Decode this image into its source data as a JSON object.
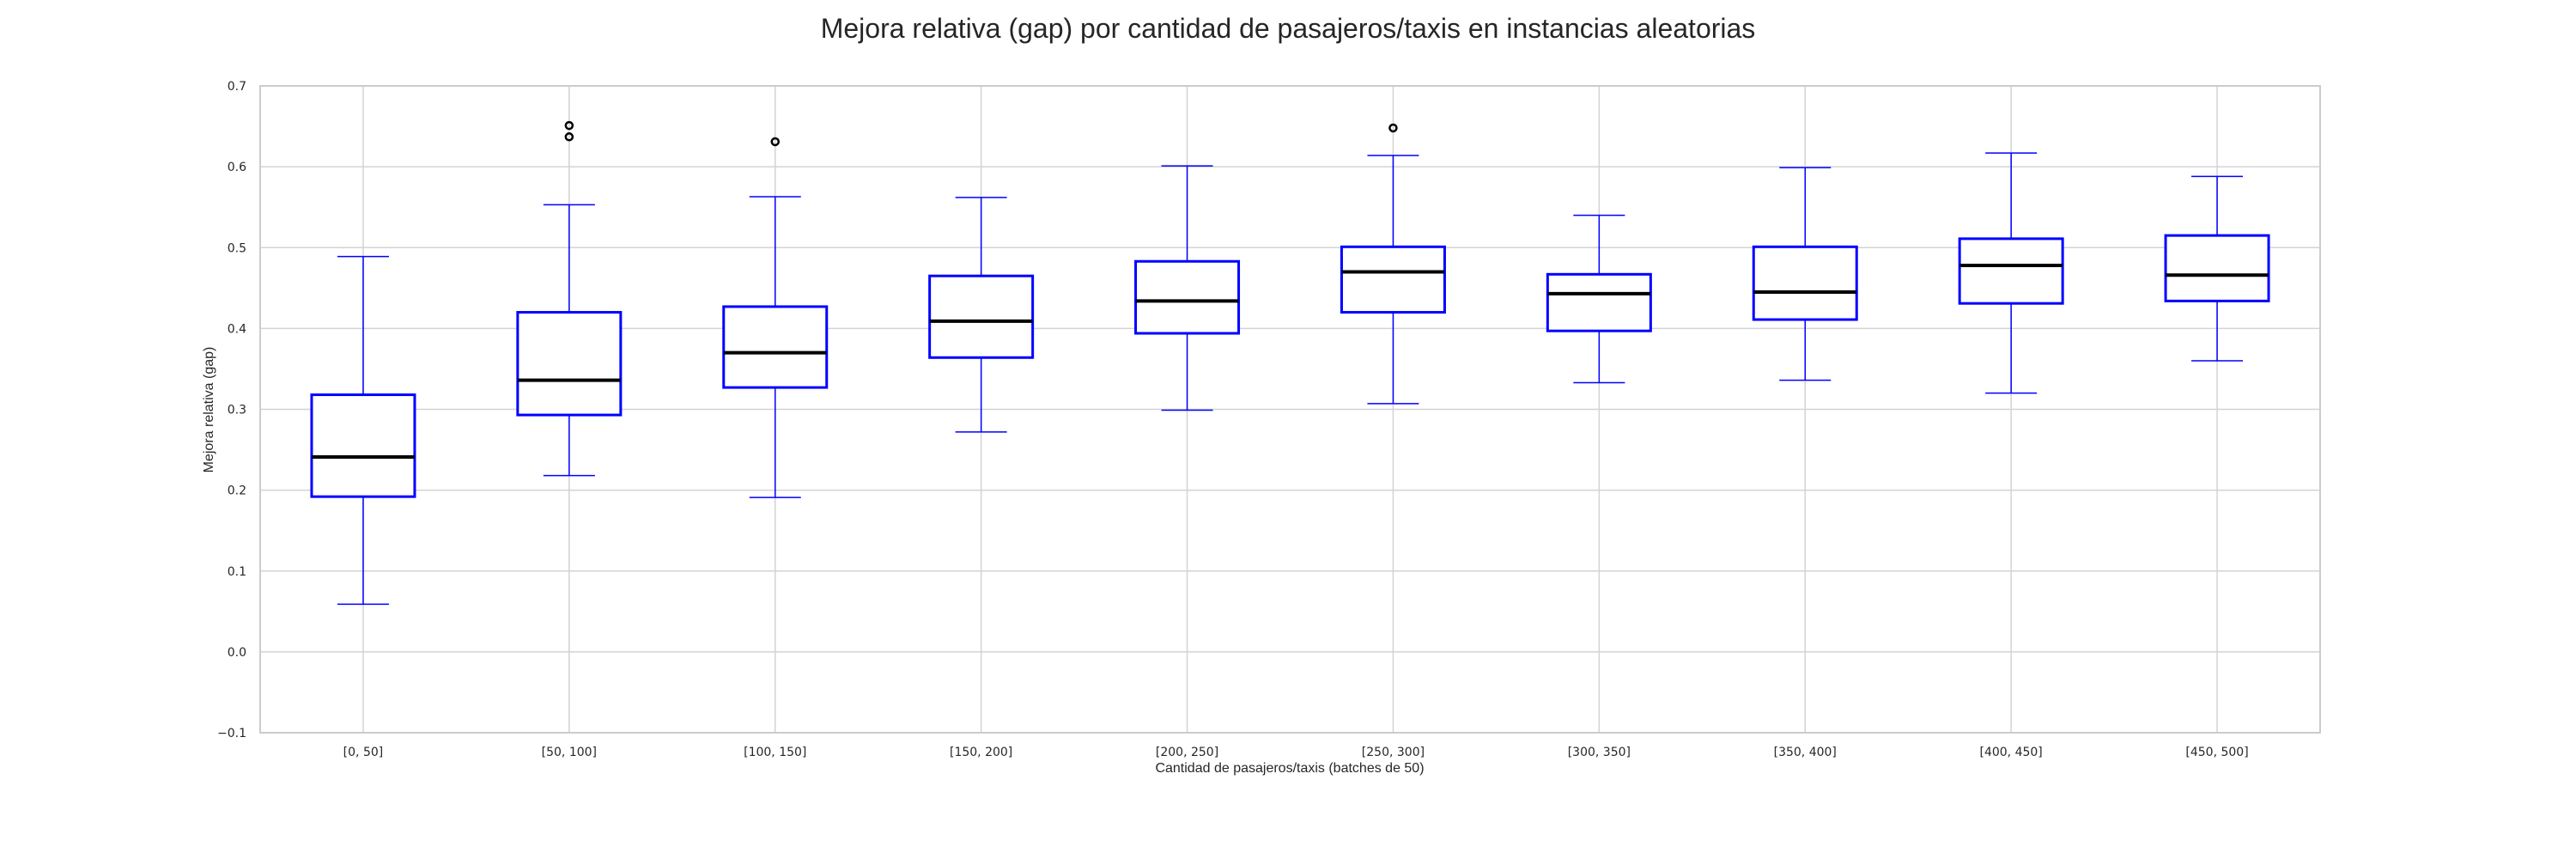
{
  "chart_data": {
    "type": "boxplot",
    "title": "Mejora relativa (gap) por cantidad de pasajeros/taxis en instancias aleatorias",
    "xlabel": "Cantidad de pasajeros/taxis (batches de 50)",
    "ylabel": "Mejora relativa (gap)",
    "ylim": [
      -0.1,
      0.7
    ],
    "yticks": [
      -0.1,
      0.0,
      0.1,
      0.2,
      0.3,
      0.4,
      0.5,
      0.6,
      0.7
    ],
    "ytick_labels": [
      "−0.1",
      "0.0",
      "0.1",
      "0.2",
      "0.3",
      "0.4",
      "0.5",
      "0.6",
      "0.7"
    ],
    "grid": true,
    "categories": [
      "[0, 50]",
      "[50, 100]",
      "[100, 150]",
      "[150, 200]",
      "[200, 250]",
      "[250, 300]",
      "[300, 350]",
      "[350, 400]",
      "[400, 450]",
      "[450, 500]"
    ],
    "boxes": [
      {
        "whislo": 0.059,
        "q1": 0.192,
        "med": 0.241,
        "q3": 0.318,
        "whishi": 0.489,
        "fliers": []
      },
      {
        "whislo": 0.218,
        "q1": 0.293,
        "med": 0.336,
        "q3": 0.42,
        "whishi": 0.553,
        "fliers": [
          0.651,
          0.637
        ]
      },
      {
        "whislo": 0.191,
        "q1": 0.327,
        "med": 0.37,
        "q3": 0.427,
        "whishi": 0.563,
        "fliers": [
          0.631
        ]
      },
      {
        "whislo": 0.272,
        "q1": 0.364,
        "med": 0.409,
        "q3": 0.465,
        "whishi": 0.562,
        "fliers": []
      },
      {
        "whislo": 0.299,
        "q1": 0.394,
        "med": 0.434,
        "q3": 0.483,
        "whishi": 0.601,
        "fliers": []
      },
      {
        "whislo": 0.307,
        "q1": 0.42,
        "med": 0.47,
        "q3": 0.501,
        "whishi": 0.614,
        "fliers": [
          0.648
        ]
      },
      {
        "whislo": 0.333,
        "q1": 0.397,
        "med": 0.443,
        "q3": 0.467,
        "whishi": 0.54,
        "fliers": []
      },
      {
        "whislo": 0.336,
        "q1": 0.411,
        "med": 0.445,
        "q3": 0.501,
        "whishi": 0.599,
        "fliers": []
      },
      {
        "whislo": 0.32,
        "q1": 0.431,
        "med": 0.478,
        "q3": 0.511,
        "whishi": 0.617,
        "fliers": []
      },
      {
        "whislo": 0.36,
        "q1": 0.434,
        "med": 0.466,
        "q3": 0.515,
        "whishi": 0.588,
        "fliers": []
      }
    ],
    "colors": {
      "box": "#0000ff",
      "median": "#000000",
      "flier": "#000000",
      "grid": "#d3d3d3",
      "frame": "#cccccc"
    }
  }
}
